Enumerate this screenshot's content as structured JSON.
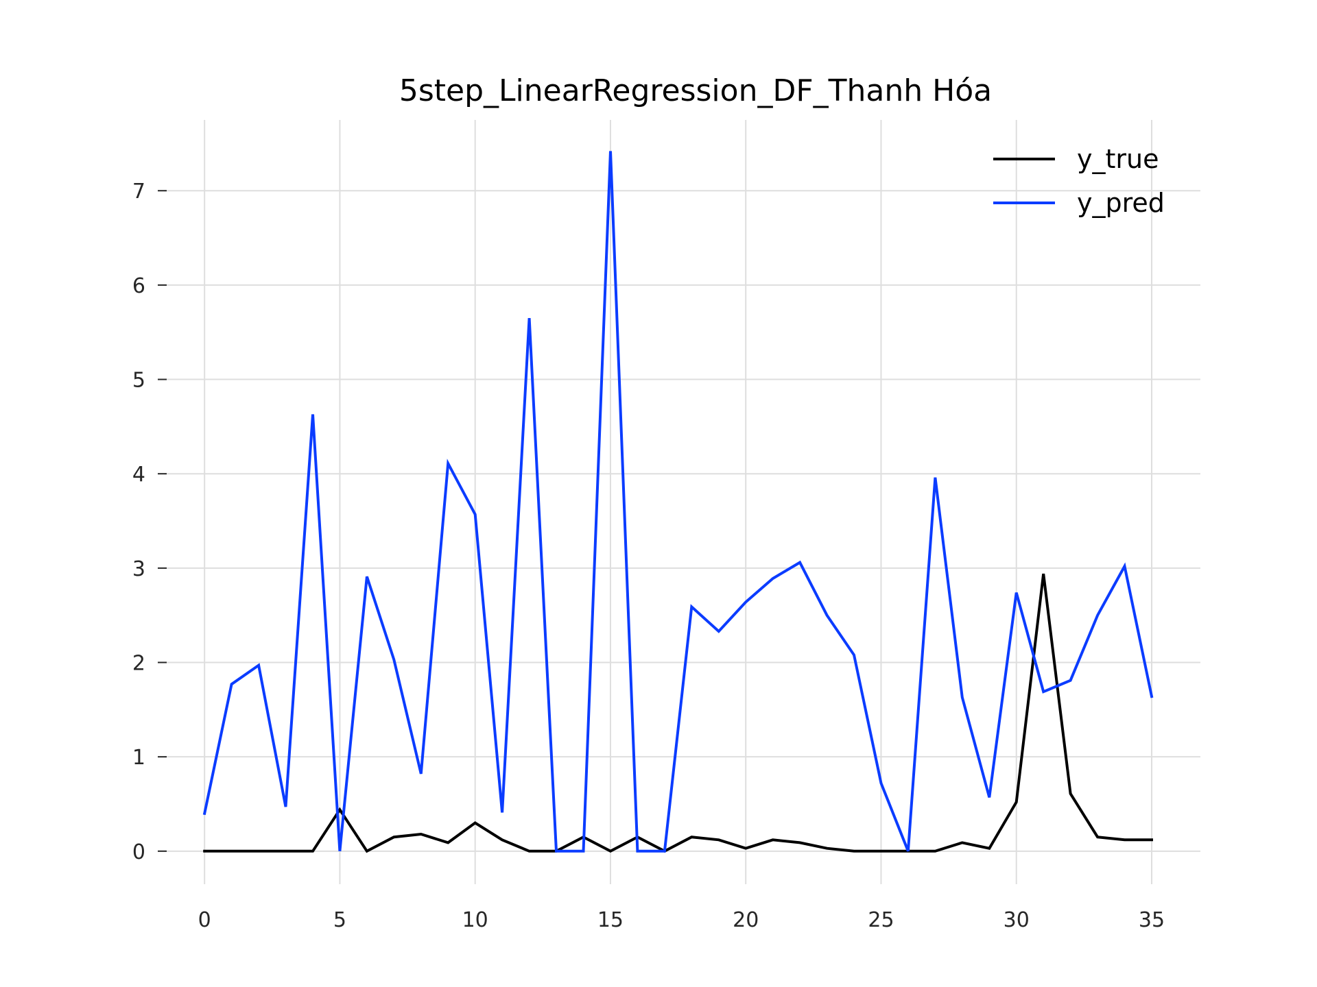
{
  "chart_data": {
    "type": "line",
    "title": "5step_LinearRegression_DF_Thanh Hóa",
    "xlabel": "",
    "ylabel": "",
    "xlim": [
      -1.5,
      36.8
    ],
    "ylim": [
      -0.35,
      7.75
    ],
    "x_ticks": [
      0,
      5,
      10,
      15,
      20,
      25,
      30,
      35
    ],
    "y_ticks": [
      0,
      1,
      2,
      3,
      4,
      5,
      6,
      7
    ],
    "grid": true,
    "legend_position": "top-right",
    "x": [
      0,
      1,
      2,
      3,
      4,
      5,
      6,
      7,
      8,
      9,
      10,
      11,
      12,
      13,
      14,
      15,
      16,
      17,
      18,
      19,
      20,
      21,
      22,
      23,
      24,
      25,
      26,
      27,
      28,
      29,
      30,
      31,
      32,
      33,
      34,
      35
    ],
    "series": [
      {
        "name": "y_true",
        "color": "#000000",
        "values": [
          0,
          0,
          0,
          0,
          0,
          0.44,
          0,
          0.15,
          0.18,
          0.09,
          0.3,
          0.12,
          0,
          0,
          0.15,
          0,
          0.15,
          0,
          0.15,
          0.12,
          0.03,
          0.12,
          0.09,
          0.03,
          0,
          0,
          0,
          0,
          0.09,
          0.03,
          0.52,
          2.94,
          0.61,
          0.15,
          0.12,
          0.12
        ]
      },
      {
        "name": "y_pred",
        "color": "#0b3cff",
        "values": [
          0.4,
          1.77,
          1.97,
          0.47,
          4.63,
          0,
          2.91,
          2.03,
          0.82,
          4.11,
          3.57,
          0.41,
          5.65,
          0,
          0,
          7.42,
          0,
          0,
          2.59,
          2.33,
          2.64,
          2.89,
          3.06,
          2.5,
          2.08,
          0.72,
          0,
          3.96,
          1.63,
          0.57,
          2.74,
          1.69,
          1.81,
          2.5,
          3.02,
          1.64
        ]
      }
    ]
  }
}
